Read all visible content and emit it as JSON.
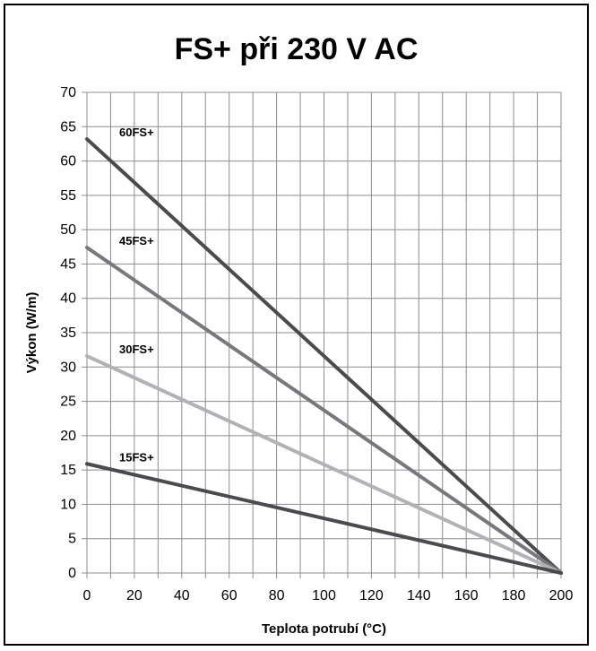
{
  "chart_data": {
    "type": "line",
    "title": "FS+ při 230 V AC",
    "xlabel": "Teplota potrubí (°C)",
    "ylabel": "Výkon (W/m)",
    "xlim": [
      0,
      200
    ],
    "ylim": [
      0,
      70
    ],
    "x_ticks": [
      "0",
      "20",
      "40",
      "60",
      "80",
      "100",
      "120",
      "140",
      "160",
      "180",
      "200"
    ],
    "y_ticks": [
      "0",
      "5",
      "10",
      "15",
      "20",
      "25",
      "30",
      "35",
      "40",
      "45",
      "50",
      "55",
      "60",
      "65",
      "70"
    ],
    "grid": true,
    "x_minor_step": 10,
    "series": [
      {
        "name": "60FS+",
        "color": "#4a4a4f",
        "points": [
          [
            0,
            63.2
          ],
          [
            200,
            0
          ]
        ]
      },
      {
        "name": "45FS+",
        "color": "#77777c",
        "points": [
          [
            0,
            47.4
          ],
          [
            200,
            0
          ]
        ]
      },
      {
        "name": "30FS+",
        "color": "#b2b2b6",
        "points": [
          [
            0,
            31.6
          ],
          [
            200,
            0
          ]
        ]
      },
      {
        "name": "15FS+",
        "color": "#4a4a4f",
        "points": [
          [
            0,
            15.9
          ],
          [
            200,
            0
          ]
        ]
      }
    ]
  }
}
